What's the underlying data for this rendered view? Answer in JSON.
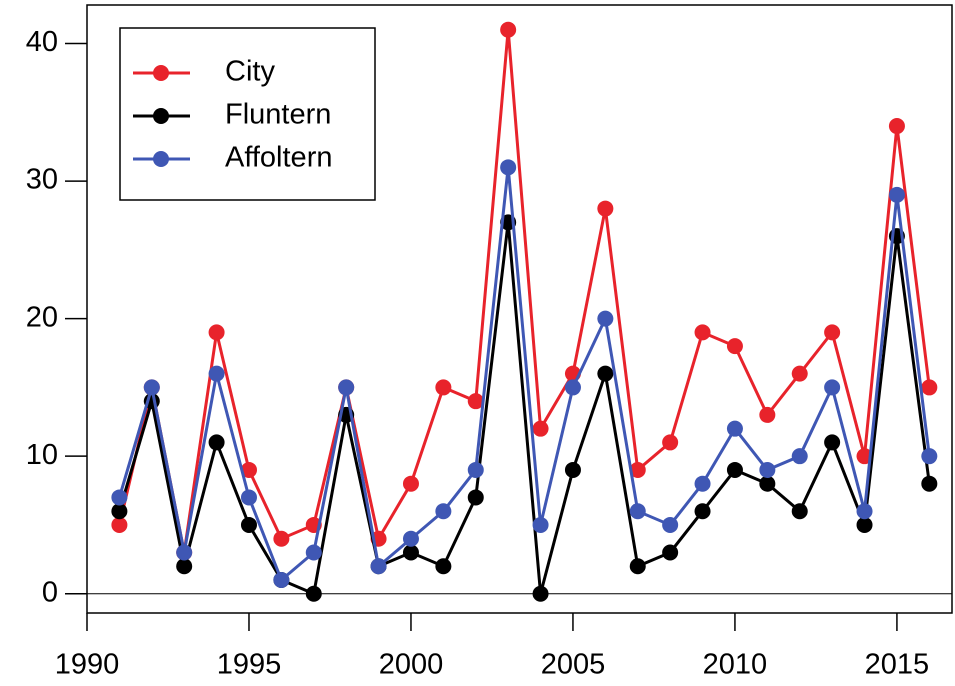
{
  "chart_data": {
    "type": "line",
    "x": [
      1991,
      1992,
      1993,
      1994,
      1995,
      1996,
      1997,
      1998,
      1999,
      2000,
      2001,
      2002,
      2003,
      2004,
      2005,
      2006,
      2007,
      2008,
      2009,
      2010,
      2011,
      2012,
      2013,
      2014,
      2015,
      2016
    ],
    "series": [
      {
        "name": "City",
        "color": "#e8232b",
        "values": [
          5,
          15,
          3,
          19,
          9,
          4,
          5,
          15,
          4,
          8,
          15,
          14,
          41,
          12,
          16,
          28,
          9,
          11,
          19,
          18,
          13,
          16,
          19,
          10,
          34,
          15
        ]
      },
      {
        "name": "Fluntern",
        "color": "#000000",
        "values": [
          6,
          14,
          2,
          11,
          5,
          1,
          0,
          13,
          2,
          3,
          2,
          7,
          27,
          0,
          9,
          16,
          2,
          3,
          6,
          9,
          8,
          6,
          11,
          5,
          26,
          8
        ]
      },
      {
        "name": "Affoltern",
        "color": "#3f57b4",
        "values": [
          7,
          15,
          3,
          16,
          7,
          1,
          3,
          15,
          2,
          4,
          6,
          9,
          31,
          5,
          15,
          20,
          6,
          5,
          8,
          12,
          9,
          10,
          15,
          6,
          29,
          10
        ]
      }
    ],
    "xlim": [
      1990,
      2016.7
    ],
    "xticks": [
      1990,
      1995,
      2000,
      2005,
      2010,
      2015
    ],
    "ylim": [
      -1.4,
      42.8
    ],
    "yticks": [
      0,
      10,
      20,
      30,
      40
    ],
    "zero_line": true,
    "legend": "upper left"
  }
}
